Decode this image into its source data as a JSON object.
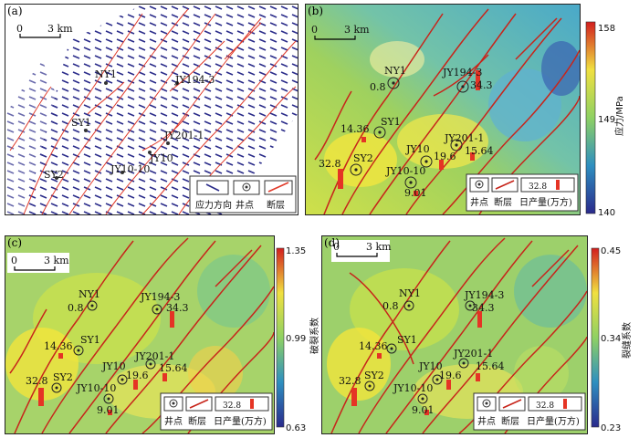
{
  "panels": {
    "a": {
      "label": "(a)"
    },
    "b": {
      "label": "(b)",
      "cbar_title": "应力/MPa",
      "cbar_max": "158",
      "cbar_mid": "149",
      "cbar_min": "140"
    },
    "c": {
      "label": "(c)",
      "cbar_title": "破裂系数",
      "cbar_max": "1.35",
      "cbar_mid": "0.99",
      "cbar_min": "0.63"
    },
    "d": {
      "label": "(d)",
      "cbar_title": "裂缝系数",
      "cbar_max": "0.45",
      "cbar_mid": "0.34",
      "cbar_min": "0.23"
    }
  },
  "scale": {
    "zero": "0",
    "dist": "3 km"
  },
  "wells": {
    "NY1": {
      "name": "NY1",
      "prod": "0.8"
    },
    "SY1": {
      "name": "SY1",
      "prod": "14.36"
    },
    "SY2": {
      "name": "SY2",
      "prod": "32.8"
    },
    "JY194_3": {
      "name": "JY194-3",
      "prod": "34.3"
    },
    "JY201_1": {
      "name": "JY201-1",
      "prod": "15.64"
    },
    "JY10": {
      "name": "JY10",
      "prod": "19.6"
    },
    "JY10_10": {
      "name": "JY10-10",
      "prod": "9.01"
    }
  },
  "legend_a": {
    "stress_dir": "应力方向",
    "well": "井点",
    "fault": "断层"
  },
  "legend_b": {
    "sample_value": "32.8",
    "well": "井点",
    "fault": "断层",
    "prod": "日产量(万方)"
  }
}
